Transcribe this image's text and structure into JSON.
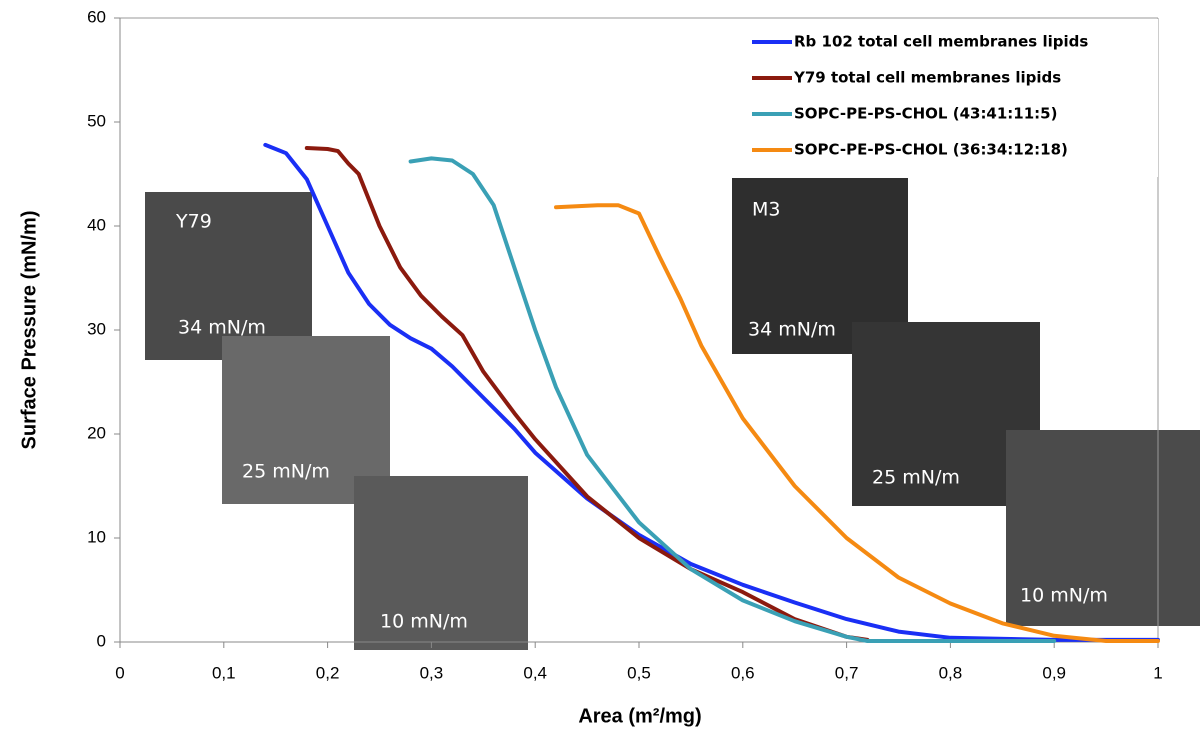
{
  "chart_data": {
    "type": "line",
    "x_label": "Area (m²/mg)",
    "y_label": "Surface Pressure (mN/m)",
    "xlim": [
      0,
      1
    ],
    "ylim": [
      0,
      60
    ],
    "xticks": [
      0,
      {
        "value": 0.1,
        "label": "0,1"
      },
      {
        "value": 0.2,
        "label": "0,2"
      },
      {
        "value": 0.3,
        "label": "0,3"
      },
      {
        "value": 0.4,
        "label": "0,4"
      },
      {
        "value": 0.5,
        "label": "0,5"
      },
      {
        "value": 0.6,
        "label": "0,6"
      },
      {
        "value": 0.7,
        "label": "0,7"
      },
      {
        "value": 0.8,
        "label": "0,8"
      },
      {
        "value": 0.9,
        "label": "0,9"
      },
      1
    ],
    "yticks": [
      0,
      10,
      20,
      30,
      40,
      50,
      60
    ],
    "grid": false,
    "legend": "upper right",
    "annotations": [
      "Y79",
      "34 mN/m",
      "25 mN/m",
      "10 mN/m",
      "M3",
      "34 mN/m",
      "25 mN/m",
      "10 mN/m"
    ],
    "series": [
      {
        "name": "Rb 102 total cell membranes lipids",
        "color": "#1a2ff5",
        "x": [
          0.14,
          0.16,
          0.18,
          0.2,
          0.22,
          0.24,
          0.26,
          0.28,
          0.3,
          0.32,
          0.35,
          0.38,
          0.4,
          0.45,
          0.5,
          0.55,
          0.6,
          0.65,
          0.7,
          0.75,
          0.8,
          0.9,
          1.0
        ],
        "values": [
          47.8,
          47,
          44.5,
          40,
          35.5,
          32.5,
          30.5,
          29.2,
          28.2,
          26.5,
          23.5,
          20.5,
          18.2,
          13.8,
          10.3,
          7.5,
          5.5,
          3.8,
          2.2,
          1.0,
          0.4,
          0.2,
          0.2
        ]
      },
      {
        "name": "Y79 total cell membranes lipids",
        "color": "#8b1a0e",
        "x": [
          0.18,
          0.2,
          0.21,
          0.22,
          0.23,
          0.24,
          0.25,
          0.27,
          0.29,
          0.31,
          0.33,
          0.35,
          0.38,
          0.4,
          0.45,
          0.5,
          0.55,
          0.6,
          0.65,
          0.7,
          0.72
        ],
        "values": [
          47.5,
          47.4,
          47.2,
          46,
          45,
          42.5,
          40,
          36,
          33.3,
          31.3,
          29.5,
          26,
          22,
          19.5,
          14,
          10,
          7,
          4.8,
          2.2,
          0.5,
          0.2
        ]
      },
      {
        "name": "SOPC-PE-PS-CHOL (43:41:11:5)",
        "color": "#3aa0b5",
        "x": [
          0.28,
          0.3,
          0.32,
          0.34,
          0.36,
          0.38,
          0.4,
          0.42,
          0.45,
          0.5,
          0.55,
          0.6,
          0.65,
          0.7,
          0.72,
          0.8,
          0.9
        ],
        "values": [
          46.2,
          46.5,
          46.3,
          45,
          42,
          36,
          30,
          24.5,
          18,
          11.5,
          7,
          4,
          2,
          0.5,
          0.1,
          0.1,
          0.1
        ]
      },
      {
        "name": "SOPC-PE-PS-CHOL (36:34:12:18)",
        "color": "#f58a12",
        "x": [
          0.42,
          0.44,
          0.46,
          0.48,
          0.5,
          0.52,
          0.54,
          0.56,
          0.6,
          0.65,
          0.7,
          0.75,
          0.8,
          0.85,
          0.9,
          0.95,
          1.0
        ],
        "values": [
          41.8,
          41.9,
          42,
          42,
          41.2,
          37,
          33,
          28.5,
          21.5,
          15,
          10,
          6.2,
          3.7,
          1.8,
          0.6,
          0.1,
          0.1
        ]
      }
    ]
  }
}
